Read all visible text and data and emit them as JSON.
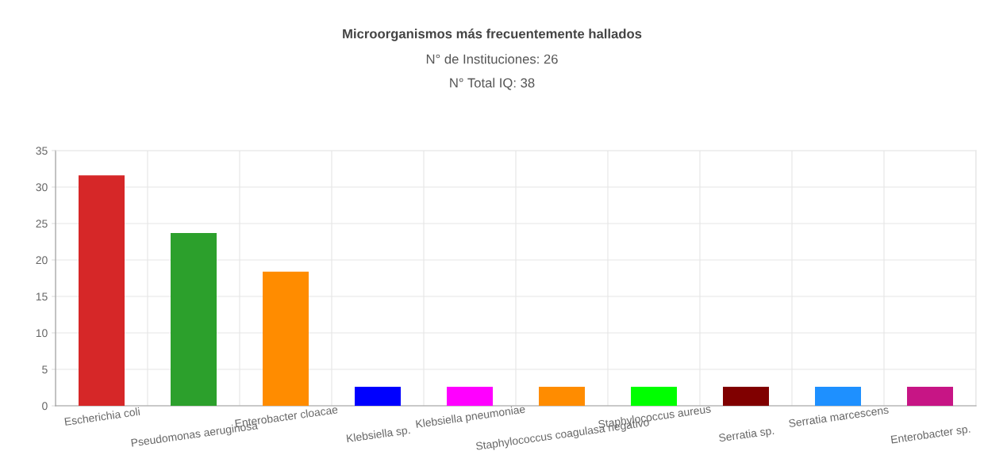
{
  "chart_data": {
    "type": "bar",
    "title": "Microorganismos más frecuentemente hallados",
    "subtitle": "N° de Instituciones: 26\nN° Total IQ: 38",
    "categories": [
      "Escherichia coli",
      "Pseudomonas aeruginosa",
      "Enterobacter cloacae",
      "Klebsiella sp.",
      "Klebsiella pneumoniae",
      "Staphylococcus coagulasa negativo",
      "Staphylococcus aureus",
      "Serratia sp.",
      "Serratia marcescens",
      "Enterobacter sp."
    ],
    "values": [
      31.6,
      23.7,
      18.4,
      2.6,
      2.6,
      2.6,
      2.6,
      2.6,
      2.6,
      2.6
    ],
    "colors": [
      "#d62728",
      "#2ca02c",
      "#ff8c00",
      "#0000ff",
      "#ff00ff",
      "#ff8c00",
      "#00ff00",
      "#800000",
      "#1e90ff",
      "#c71585"
    ],
    "ylim": [
      0,
      35
    ],
    "yticks": [
      0,
      5,
      10,
      15,
      20,
      25,
      30,
      35
    ],
    "grid": true,
    "legend": false
  }
}
